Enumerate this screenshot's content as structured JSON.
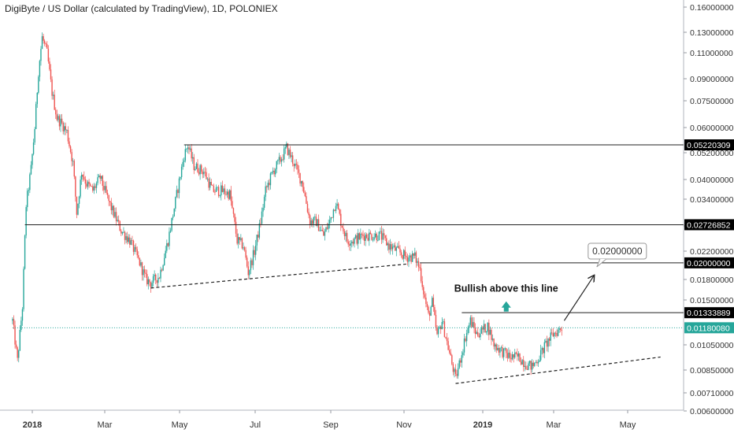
{
  "title": "DigiByte / US Dollar (calculated by TradingView), 1D, POLONIEX",
  "colors": {
    "up": "#26a69a",
    "down": "#ef5350",
    "line": "#222222",
    "current": "#26a69a",
    "label_bg": "#000000",
    "current_bg": "#26a69a"
  },
  "chart_data": {
    "type": "candlestick",
    "x_tick_labels": [
      "2018",
      "Mar",
      "May",
      "Jul",
      "Sep",
      "Nov",
      "2019",
      "Mar",
      "May"
    ],
    "x_tick_bold": [
      "2018",
      "2019"
    ],
    "y_axis_labels": [
      "0.16000000",
      "0.13000000",
      "0.11000000",
      "0.09000000",
      "0.07500000",
      "0.06000000",
      "0.05200000",
      "0.04000000",
      "0.03400000",
      "0.02800000",
      "0.02200000",
      "0.01800000",
      "0.01500000",
      "0.01050000",
      "0.00850000",
      "0.00710000",
      "0.00600000"
    ],
    "y_scale": "log",
    "price_path": [
      [
        "2017-12-16",
        0.0125
      ],
      [
        "2017-12-20",
        0.009
      ],
      [
        "2017-12-24",
        0.014
      ],
      [
        "2017-12-27",
        0.032
      ],
      [
        "2017-12-31",
        0.043
      ],
      [
        "2018-01-03",
        0.06
      ],
      [
        "2018-01-06",
        0.095
      ],
      [
        "2018-01-09",
        0.125
      ],
      [
        "2018-01-13",
        0.11
      ],
      [
        "2018-01-17",
        0.08
      ],
      [
        "2018-01-21",
        0.065
      ],
      [
        "2018-01-25",
        0.062
      ],
      [
        "2018-01-29",
        0.058
      ],
      [
        "2018-02-03",
        0.045
      ],
      [
        "2018-02-06",
        0.03
      ],
      [
        "2018-02-10",
        0.042
      ],
      [
        "2018-02-14",
        0.038
      ],
      [
        "2018-02-19",
        0.036
      ],
      [
        "2018-02-25",
        0.04
      ],
      [
        "2018-03-05",
        0.032
      ],
      [
        "2018-03-14",
        0.026
      ],
      [
        "2018-03-21",
        0.024
      ],
      [
        "2018-03-29",
        0.02
      ],
      [
        "2018-04-03",
        0.0175
      ],
      [
        "2018-04-07",
        0.017
      ],
      [
        "2018-04-14",
        0.018
      ],
      [
        "2018-04-21",
        0.024
      ],
      [
        "2018-04-27",
        0.033
      ],
      [
        "2018-05-04",
        0.048
      ],
      [
        "2018-05-07",
        0.052
      ],
      [
        "2018-05-12",
        0.044
      ],
      [
        "2018-05-20",
        0.042
      ],
      [
        "2018-05-27",
        0.036
      ],
      [
        "2018-06-03",
        0.036
      ],
      [
        "2018-06-10",
        0.035
      ],
      [
        "2018-06-16",
        0.024
      ],
      [
        "2018-06-21",
        0.023
      ],
      [
        "2018-06-25",
        0.0185
      ],
      [
        "2018-06-30",
        0.022
      ],
      [
        "2018-07-05",
        0.028
      ],
      [
        "2018-07-09",
        0.036
      ],
      [
        "2018-07-15",
        0.042
      ],
      [
        "2018-07-22",
        0.047
      ],
      [
        "2018-07-26",
        0.051
      ],
      [
        "2018-08-01",
        0.045
      ],
      [
        "2018-08-08",
        0.038
      ],
      [
        "2018-08-14",
        0.028
      ],
      [
        "2018-08-19",
        0.028
      ],
      [
        "2018-08-25",
        0.025
      ],
      [
        "2018-08-30",
        0.028
      ],
      [
        "2018-09-04",
        0.033
      ],
      [
        "2018-09-08",
        0.028
      ],
      [
        "2018-09-13",
        0.024
      ],
      [
        "2018-09-18",
        0.024
      ],
      [
        "2018-09-26",
        0.025
      ],
      [
        "2018-10-03",
        0.025
      ],
      [
        "2018-10-10",
        0.025
      ],
      [
        "2018-10-17",
        0.023
      ],
      [
        "2018-10-24",
        0.022
      ],
      [
        "2018-10-31",
        0.021
      ],
      [
        "2018-11-07",
        0.021
      ],
      [
        "2018-11-11",
        0.019
      ],
      [
        "2018-11-15",
        0.015
      ],
      [
        "2018-11-18",
        0.013
      ],
      [
        "2018-11-21",
        0.0145
      ],
      [
        "2018-11-25",
        0.011
      ],
      [
        "2018-11-29",
        0.0125
      ],
      [
        "2018-12-03",
        0.0105
      ],
      [
        "2018-12-07",
        0.0088
      ],
      [
        "2018-12-10",
        0.0078
      ],
      [
        "2018-12-14",
        0.0092
      ],
      [
        "2018-12-18",
        0.011
      ],
      [
        "2018-12-22",
        0.0125
      ],
      [
        "2018-12-27",
        0.0112
      ],
      [
        "2019-01-01",
        0.0116
      ],
      [
        "2019-01-05",
        0.012
      ],
      [
        "2019-01-10",
        0.0103
      ],
      [
        "2019-01-16",
        0.0098
      ],
      [
        "2019-01-23",
        0.0093
      ],
      [
        "2019-01-30",
        0.0093
      ],
      [
        "2019-02-05",
        0.0088
      ],
      [
        "2019-02-10",
        0.0086
      ],
      [
        "2019-02-15",
        0.0092
      ],
      [
        "2019-02-21",
        0.0103
      ],
      [
        "2019-02-27",
        0.0112
      ],
      [
        "2019-03-04",
        0.0116
      ],
      [
        "2019-03-06",
        0.0118
      ]
    ],
    "horizontal_levels": [
      {
        "start": "2018-05-04",
        "price": 0.05220309,
        "label": "0.05220309"
      },
      {
        "start": "2017-12-26",
        "price": 0.02726852,
        "label": "0.02726852"
      },
      {
        "start": "2018-11-11",
        "price": 0.02,
        "label": "0.02000000"
      },
      {
        "start": "2018-12-15",
        "price": 0.01333889,
        "label": "0.01333889"
      }
    ],
    "current_price": {
      "start": "2017-12-16",
      "price": 0.0118008,
      "label": "0.01180080"
    },
    "trendlines": [
      {
        "style": "dashed",
        "points": [
          [
            "2018-04-07",
            0.0163
          ],
          [
            "2018-10-31",
            0.0198
          ]
        ]
      },
      {
        "style": "dashed",
        "points": [
          [
            "2018-12-10",
            0.0075
          ],
          [
            "2019-05-25",
            0.0093
          ]
        ]
      },
      {
        "style": "arrow",
        "points": [
          [
            "2019-03-08",
            0.0125
          ],
          [
            "2019-04-01",
            0.018
          ]
        ]
      }
    ],
    "annotations": [
      {
        "text": "Bullish above this line",
        "anchor": [
          "2019-01-20",
          0.0158
        ]
      },
      {
        "text": "0.02000000",
        "anchor": [
          "2019-04-20",
          0.022
        ],
        "kind": "callout"
      }
    ]
  }
}
